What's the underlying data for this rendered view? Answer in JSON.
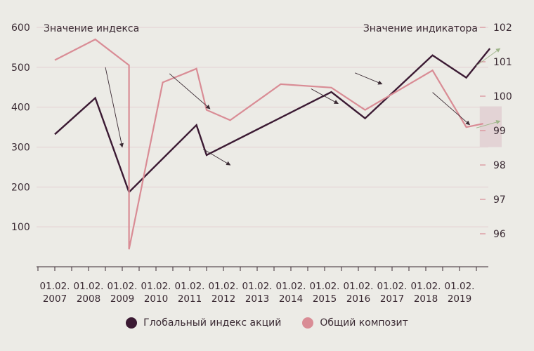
{
  "chart_data": {
    "type": "line",
    "left_axis_title": "Значение индекса",
    "right_axis_title": "Значение индикатора",
    "y_left": {
      "min": 0,
      "max": 600,
      "ticks": [
        100,
        200,
        300,
        400,
        500,
        600
      ]
    },
    "y_right": {
      "min": 95.3,
      "max": 102,
      "ticks": [
        96,
        97,
        98,
        99,
        100,
        101,
        102
      ]
    },
    "x_labels": [
      {
        "line1": "01.02.",
        "line2": "2007"
      },
      {
        "line1": "01.02.",
        "line2": "2008"
      },
      {
        "line1": "01.02.",
        "line2": "2009"
      },
      {
        "line1": "01.02.",
        "line2": "2010"
      },
      {
        "line1": "01.02.",
        "line2": "2011"
      },
      {
        "line1": "01.02.",
        "line2": "2012"
      },
      {
        "line1": "01.02.",
        "line2": "2013"
      },
      {
        "line1": "01.02.",
        "line2": "2014"
      },
      {
        "line1": "01.02.",
        "line2": "2015"
      },
      {
        "line1": "01.02.",
        "line2": "2016"
      },
      {
        "line1": "01.02.",
        "line2": "2017"
      },
      {
        "line1": "01.02.",
        "line2": "2018"
      },
      {
        "line1": "01.02.",
        "line2": "2019"
      }
    ],
    "series": [
      {
        "name": "Глобальный индекс акций",
        "axis": "left",
        "color": "#3b1a33",
        "points": [
          [
            2007.0,
            332
          ],
          [
            2008.2,
            423
          ],
          [
            2009.2,
            187
          ],
          [
            2011.2,
            355
          ],
          [
            2011.5,
            280
          ],
          [
            2015.2,
            438
          ],
          [
            2016.2,
            372
          ],
          [
            2018.2,
            530
          ],
          [
            2019.2,
            474
          ],
          [
            2019.9,
            547
          ]
        ]
      },
      {
        "name": "Общий композит",
        "axis": "right",
        "color": "#d98c95",
        "points": [
          [
            2007.0,
            101.05
          ],
          [
            2008.2,
            101.65
          ],
          [
            2009.2,
            100.9
          ],
          [
            2009.2,
            95.55
          ],
          [
            2010.2,
            100.4
          ],
          [
            2011.2,
            100.8
          ],
          [
            2011.5,
            99.6
          ],
          [
            2012.2,
            99.3
          ],
          [
            2013.7,
            100.35
          ],
          [
            2015.2,
            100.25
          ],
          [
            2016.2,
            99.6
          ],
          [
            2018.2,
            100.75
          ],
          [
            2019.2,
            99.1
          ],
          [
            2019.7,
            99.2
          ]
        ]
      }
    ],
    "annotation_arrows": [
      {
        "x1": 2008.5,
        "y1": 500,
        "x2": 2009.0,
        "y2": 300,
        "color": "#3a2a33"
      },
      {
        "x1": 2010.4,
        "y1": 484,
        "x2": 2011.6,
        "y2": 396,
        "color": "#3a2a33"
      },
      {
        "x1": 2011.4,
        "y1": 295,
        "x2": 2012.2,
        "y2": 255,
        "color": "#3a2a33"
      },
      {
        "x1": 2014.6,
        "y1": 446,
        "x2": 2015.4,
        "y2": 409,
        "color": "#3a2a33"
      },
      {
        "x1": 2015.9,
        "y1": 486,
        "x2": 2016.7,
        "y2": 458,
        "color": "#3a2a33"
      },
      {
        "x1": 2018.2,
        "y1": 437,
        "x2": 2019.3,
        "y2": 356,
        "color": "#3a2a33"
      },
      {
        "x1": 2019.5,
        "y1": 504,
        "x2": 2020.2,
        "y2": 547,
        "color": "#9fb58a"
      },
      {
        "x1": 2019.5,
        "y1": 348,
        "x2": 2020.2,
        "y2": 365,
        "color": "#9fb58a"
      }
    ],
    "highlight_region": {
      "x0": 2019.6,
      "x1": 2020.25,
      "y0": 300,
      "y1": 402,
      "color": "#e3d3d5"
    }
  }
}
